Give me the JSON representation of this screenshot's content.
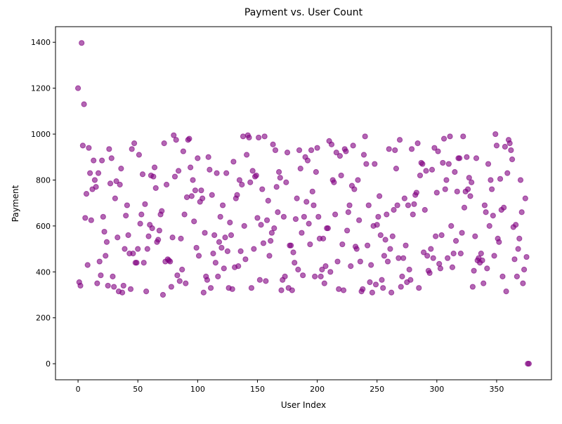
{
  "chart_data": {
    "type": "scatter",
    "title": "Payment vs. User Count",
    "x_label": "User Index",
    "y_label": "Payment",
    "xlim": [
      -18.85,
      395.85
    ],
    "ylim": [
      -69.9,
      1467.9
    ],
    "xticks": [
      0,
      50,
      100,
      150,
      200,
      250,
      300,
      350
    ],
    "yticks": [
      0,
      200,
      400,
      600,
      800,
      1000,
      1200,
      1400
    ],
    "series": [
      {
        "name": "Payment",
        "color": "purple",
        "x": [
          0,
          1,
          2,
          3,
          4,
          5,
          6,
          7,
          8,
          9,
          10,
          11,
          12,
          13,
          14,
          15,
          16,
          17,
          18,
          19,
          20,
          21,
          22,
          23,
          24,
          25,
          26,
          27,
          28,
          29,
          30,
          31,
          32,
          33,
          34,
          35,
          36,
          37,
          38,
          39,
          40,
          41,
          42,
          43,
          44,
          45,
          46,
          47,
          48,
          49,
          50,
          51,
          52,
          53,
          54,
          55,
          56,
          57,
          58,
          59,
          60,
          61,
          62,
          63,
          64,
          65,
          66,
          67,
          68,
          69,
          70,
          71,
          72,
          73,
          74,
          75,
          76,
          77,
          78,
          79,
          80,
          81,
          82,
          83,
          84,
          85,
          86,
          87,
          88,
          89,
          90,
          91,
          92,
          93,
          94,
          95,
          96,
          97,
          98,
          99,
          100,
          101,
          102,
          103,
          104,
          105,
          106,
          107,
          108,
          109,
          110,
          111,
          112,
          113,
          114,
          115,
          116,
          117,
          118,
          119,
          120,
          121,
          122,
          123,
          124,
          125,
          126,
          127,
          128,
          129,
          130,
          131,
          132,
          133,
          134,
          135,
          136,
          137,
          138,
          139,
          140,
          141,
          142,
          143,
          144,
          145,
          146,
          147,
          148,
          149,
          150,
          151,
          152,
          153,
          154,
          155,
          156,
          157,
          158,
          159,
          160,
          161,
          162,
          163,
          164,
          165,
          166,
          167,
          168,
          169,
          170,
          171,
          172,
          173,
          174,
          175,
          176,
          177,
          178,
          179,
          180,
          181,
          182,
          183,
          184,
          185,
          186,
          187,
          188,
          189,
          190,
          191,
          192,
          193,
          194,
          195,
          196,
          197,
          198,
          199,
          200,
          201,
          202,
          203,
          204,
          205,
          206,
          207,
          208,
          209,
          210,
          211,
          212,
          213,
          214,
          215,
          216,
          217,
          218,
          219,
          220,
          221,
          222,
          223,
          224,
          225,
          226,
          227,
          228,
          229,
          230,
          231,
          232,
          233,
          234,
          235,
          236,
          237,
          238,
          239,
          240,
          241,
          242,
          243,
          244,
          245,
          246,
          247,
          248,
          249,
          250,
          251,
          252,
          253,
          254,
          255,
          256,
          257,
          258,
          259,
          260,
          261,
          262,
          263,
          264,
          265,
          266,
          267,
          268,
          269,
          270,
          271,
          272,
          273,
          274,
          275,
          276,
          277,
          278,
          279,
          280,
          281,
          282,
          283,
          284,
          285,
          286,
          287,
          288,
          289,
          290,
          291,
          292,
          293,
          294,
          295,
          296,
          297,
          298,
          299,
          300,
          301,
          302,
          303,
          304,
          305,
          306,
          307,
          308,
          309,
          310,
          311,
          312,
          313,
          314,
          315,
          316,
          317,
          318,
          319,
          320,
          321,
          322,
          323,
          324,
          325,
          326,
          327,
          328,
          329,
          330,
          331,
          332,
          333,
          334,
          335,
          336,
          337,
          338,
          339,
          340,
          341,
          342,
          343,
          344,
          345,
          346,
          347,
          348,
          349,
          350,
          351,
          352,
          353,
          354,
          355,
          356,
          357,
          358,
          359,
          360,
          361,
          362,
          363,
          364,
          365,
          366,
          367,
          368,
          369,
          370,
          371,
          372,
          373,
          374,
          375,
          376,
          377
        ],
        "values": [
          1200,
          355,
          340,
          1397,
          950,
          1130,
          635,
          740,
          430,
          940,
          830,
          625,
          760,
          885,
          800,
          770,
          350,
          830,
          445,
          385,
          885,
          640,
          575,
          470,
          530,
          340,
          935,
          785,
          895,
          380,
          335,
          720,
          795,
          550,
          315,
          780,
          850,
          310,
          340,
          500,
          645,
          690,
          560,
          480,
          325,
          935,
          480,
          960,
          440,
          440,
          500,
          910,
          610,
          650,
          825,
          440,
          695,
          315,
          500,
          555,
          605,
          820,
          590,
          815,
          855,
          765,
          530,
          540,
          580,
          650,
          665,
          300,
          960,
          445,
          780,
          455,
          450,
          445,
          335,
          550,
          995,
          815,
          975,
          385,
          840,
          360,
          545,
          410,
          925,
          650,
          350,
          725,
          975,
          980,
          855,
          730,
          800,
          620,
          755,
          505,
          895,
          470,
          705,
          755,
          720,
          310,
          570,
          380,
          365,
          900,
          845,
          330,
          735,
          480,
          560,
          440,
          830,
          380,
          530,
          640,
          505,
          690,
          415,
          550,
          830,
          490,
          330,
          615,
          560,
          325,
          880,
          420,
          720,
          735,
          425,
          800,
          490,
          780,
          990,
          600,
          455,
          910,
          995,
          985,
          790,
          330,
          840,
          500,
          815,
          820,
          635,
          985,
          365,
          605,
          760,
          525,
          990,
          360,
          625,
          710,
          470,
          535,
          570,
          955,
          590,
          930,
          770,
          660,
          835,
          810,
          320,
          365,
          640,
          380,
          790,
          920,
          330,
          515,
          515,
          320,
          485,
          440,
          630,
          720,
          410,
          930,
          850,
          570,
          385,
          640,
          900,
          705,
          885,
          610,
          520,
          930,
          750,
          690,
          380,
          835,
          940,
          640,
          545,
          380,
          410,
          545,
          350,
          425,
          590,
          590,
          970,
          400,
          955,
          800,
          790,
          650,
          920,
          445,
          325,
          905,
          820,
          520,
          320,
          935,
          925,
          580,
          660,
          690,
          425,
          775,
          950,
          760,
          510,
          500,
          800,
          625,
          445,
          315,
          325,
          910,
          990,
          870,
          515,
          690,
          355,
          430,
          310,
          600,
          870,
          345,
          605,
          640,
          730,
          560,
          365,
          330,
          470,
          540,
          650,
          445,
          935,
          500,
          310,
          555,
          670,
          930,
          850,
          690,
          460,
          975,
          335,
          380,
          460,
          720,
          515,
          355,
          690,
          410,
          365,
          935,
          650,
          695,
          735,
          745,
          960,
          330,
          820,
          875,
          870,
          485,
          670,
          840,
          470,
          405,
          395,
          500,
          845,
          460,
          940,
          555,
          745,
          925,
          435,
          415,
          560,
          875,
          980,
          760,
          800,
          460,
          870,
          990,
          600,
          420,
          480,
          835,
          535,
          750,
          895,
          895,
          480,
          570,
          990,
          680,
          750,
          900,
          760,
          810,
          730,
          790,
          335,
          405,
          555,
          895,
          450,
          460,
          440,
          480,
          450,
          350,
          690,
          660,
          415,
          870,
          600,
          800,
          760,
          645,
          470,
          1000,
          950,
          545,
          530,
          805,
          670,
          380,
          680,
          945,
          315,
          830,
          975,
          960,
          930,
          890,
          595,
          455,
          605,
          380,
          500,
          545,
          800,
          660,
          350,
          410,
          720,
          465,
          0,
          0
        ]
      }
    ]
  }
}
